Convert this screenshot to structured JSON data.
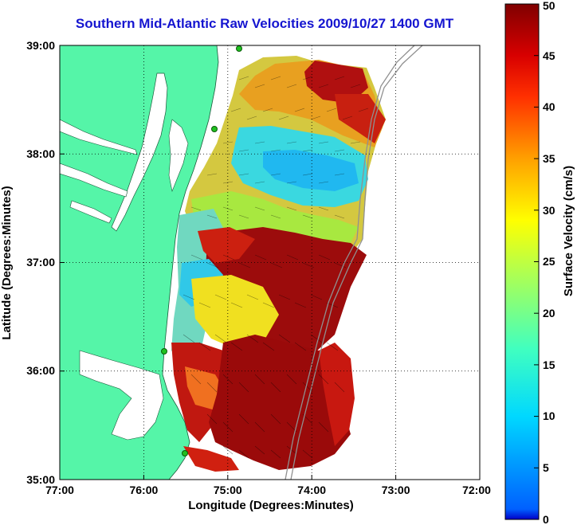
{
  "title": "Southern Mid-Atlantic Raw Velocities 2009/10/27 1400 GMT",
  "xlabel": "Longitude (Degrees:Minutes)",
  "ylabel": "Latitude (Degrees:Minutes)",
  "x_ticks": [
    "77:00",
    "76:00",
    "75:00",
    "74:00",
    "73:00",
    "72:00"
  ],
  "y_ticks": [
    "39:00",
    "38:00",
    "37:00",
    "36:00",
    "35:00"
  ],
  "colorbar": {
    "label": "Surface Velocity (cm/s)",
    "ticks": [
      "0",
      "5",
      "10",
      "15",
      "20",
      "25",
      "30",
      "35",
      "40",
      "45",
      "50"
    ],
    "range": [
      0,
      50
    ]
  },
  "colors": {
    "land": "#55f5a8",
    "title": "#1515d0",
    "background": "#ffffff"
  },
  "chart_data": {
    "type": "heatmap",
    "title": "Southern Mid-Atlantic Raw Velocities 2009/10/27 1400 GMT",
    "xlabel": "Longitude (Degrees:Minutes)",
    "ylabel": "Latitude (Degrees:Minutes)",
    "xlim": [
      -77,
      -72
    ],
    "ylim": [
      35,
      39
    ],
    "grid": true,
    "colorbar_range": [
      0,
      50
    ],
    "colorbar_label": "Surface Velocity (cm/s)"
  }
}
